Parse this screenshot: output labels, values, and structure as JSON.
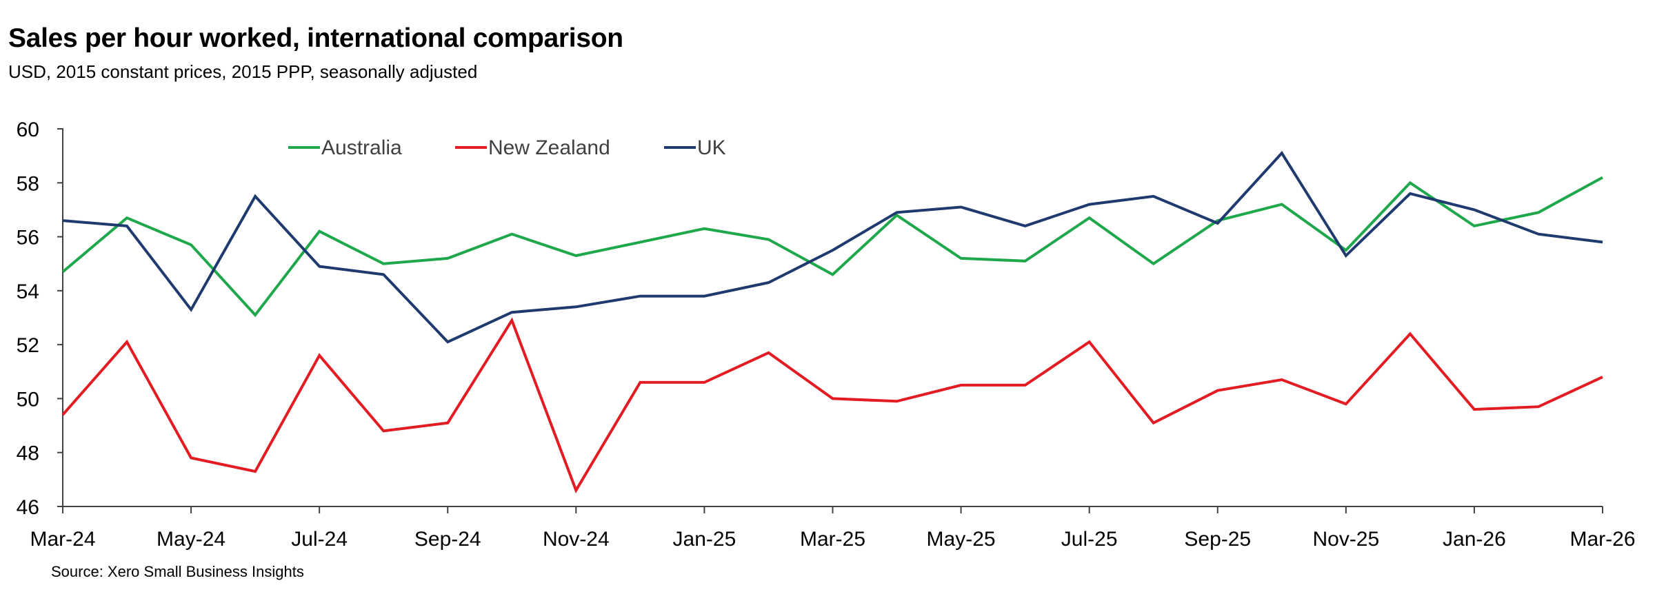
{
  "chart_data": {
    "type": "line",
    "title": "Sales per hour worked, international comparison",
    "subtitle": "USD, 2015 constant prices, 2015 PPP, seasonally adjusted",
    "source": "Source: Xero Small Business Insights",
    "xlabel": "",
    "ylabel": "",
    "ylim": [
      46,
      60
    ],
    "yticks": [
      46,
      48,
      50,
      52,
      54,
      56,
      58,
      60
    ],
    "grid": false,
    "legend_position": "top",
    "x": [
      "Mar-24",
      "Apr-24",
      "May-24",
      "Jun-24",
      "Jul-24",
      "Aug-24",
      "Sep-24",
      "Oct-24",
      "Nov-24",
      "Dec-24",
      "Jan-25",
      "Feb-25",
      "Mar-25",
      "Apr-25",
      "May-25",
      "Jun-25",
      "Jul-25",
      "Aug-25",
      "Sep-25",
      "Oct-25",
      "Nov-25",
      "Dec-25",
      "Jan-26",
      "Feb-26",
      "Mar-26"
    ],
    "xtick_labels": [
      "Mar-24",
      "May-24",
      "Jul-24",
      "Sep-24",
      "Nov-24",
      "Jan-25",
      "Mar-25",
      "May-25",
      "Jul-25",
      "Sep-25",
      "Nov-25",
      "Jan-26",
      "Mar-26"
    ],
    "series": [
      {
        "name": "Australia",
        "color": "#1fa84b",
        "values": [
          54.7,
          56.7,
          55.7,
          53.1,
          56.2,
          55.0,
          55.2,
          56.1,
          55.3,
          55.8,
          56.3,
          55.9,
          54.6,
          56.8,
          55.2,
          55.1,
          56.7,
          55.0,
          56.6,
          57.2,
          55.5,
          58.0,
          56.4,
          56.9,
          58.2
        ]
      },
      {
        "name": "New Zealand",
        "color": "#e31b23",
        "values": [
          49.4,
          52.1,
          47.8,
          47.3,
          51.6,
          48.8,
          49.1,
          52.9,
          46.6,
          50.6,
          50.6,
          51.7,
          50.0,
          49.9,
          50.5,
          50.5,
          52.1,
          49.1,
          50.3,
          50.7,
          49.8,
          52.4,
          49.6,
          49.7,
          50.8
        ]
      },
      {
        "name": "UK",
        "color": "#1f3a6e",
        "values": [
          56.6,
          56.4,
          53.3,
          57.5,
          54.9,
          54.6,
          52.1,
          53.2,
          53.4,
          53.8,
          53.8,
          54.3,
          55.5,
          56.9,
          57.1,
          56.4,
          57.2,
          57.5,
          56.5,
          59.1,
          55.3,
          57.6,
          57.0,
          56.1,
          55.8
        ]
      }
    ]
  }
}
